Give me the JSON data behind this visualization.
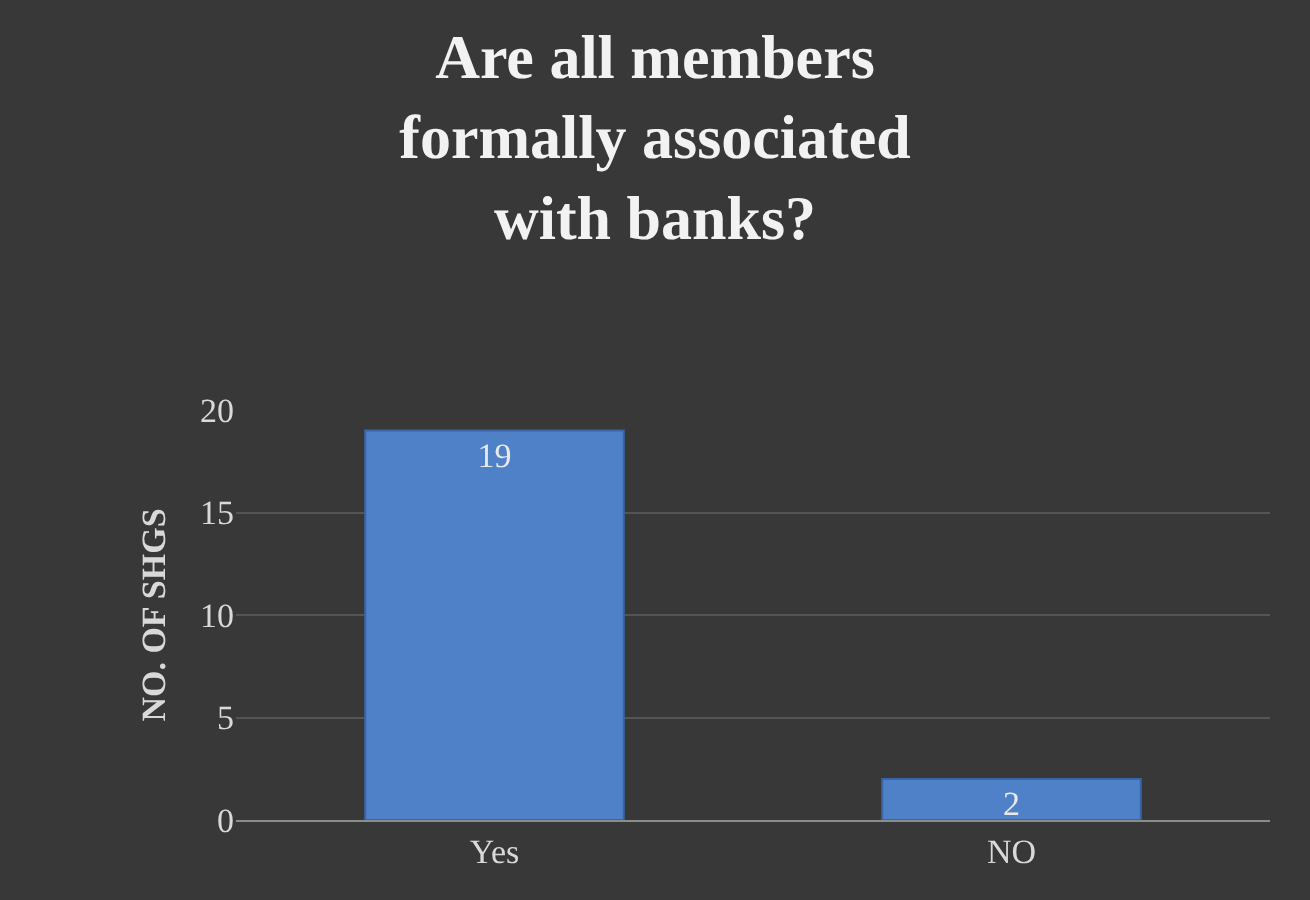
{
  "chart_data": {
    "type": "bar",
    "title": "Are all members formally associated with banks?",
    "ylabel": "NO. OF SHGS",
    "categories": [
      "Yes",
      "NO"
    ],
    "values": [
      19,
      2
    ],
    "color": "#4f81c9",
    "ylim": [
      0,
      20
    ],
    "yticks": [
      0,
      5,
      10,
      15,
      20
    ],
    "grid": "y",
    "data_labels": true
  }
}
